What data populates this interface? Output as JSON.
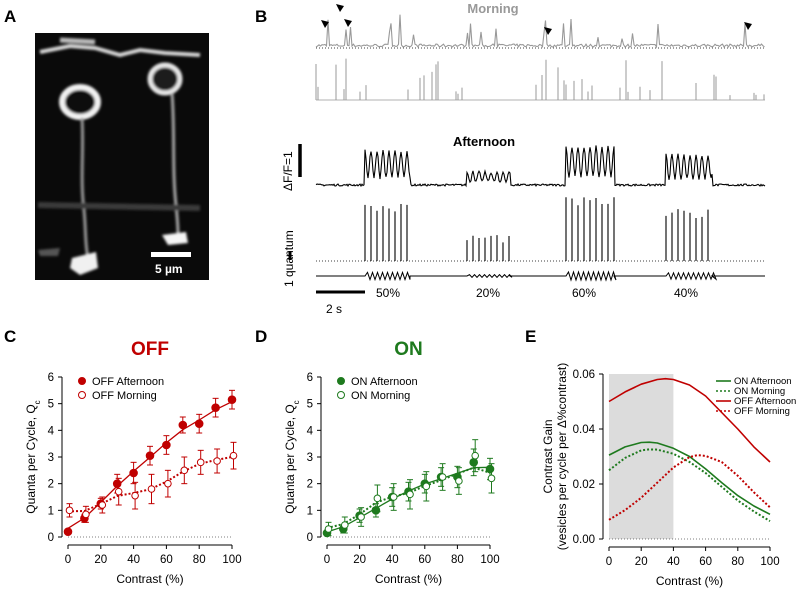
{
  "panel_labels": [
    "A",
    "B",
    "C",
    "D",
    "E"
  ],
  "panel_a": {
    "scale_bar_label": "5 µm"
  },
  "panel_b": {
    "morning_label": "Morning",
    "afternoon_label": "Afternoon",
    "dff_scale_label": "ΔF/F=1",
    "quantum_scale_label": "1 quantum",
    "time_scale_label": "2 s",
    "contrast_labels": [
      "50%",
      "20%",
      "60%",
      "40%"
    ],
    "colors": {
      "morning": "#999999",
      "afternoon": "#000000"
    }
  },
  "chart_data": [
    {
      "type": "scatter",
      "title": "OFF",
      "xlabel": "Contrast (%)",
      "ylabel": "Quanta per Cycle, Q",
      "ylabel_sub": "c",
      "xlim": [
        0,
        100
      ],
      "ylim": [
        0,
        6
      ],
      "xticks": [
        "0",
        "20",
        "40",
        "60",
        "80",
        "100"
      ],
      "yticks": [
        "0",
        "1",
        "2",
        "3",
        "4",
        "5",
        "6"
      ],
      "color": "#c00000",
      "series": [
        {
          "name": "OFF Afternoon",
          "marker": "filled",
          "line": "solid",
          "x": [
            0,
            10,
            20,
            30,
            40,
            50,
            60,
            70,
            80,
            90,
            100
          ],
          "y": [
            0.2,
            0.7,
            1.25,
            2.0,
            2.4,
            3.05,
            3.45,
            4.2,
            4.25,
            4.85,
            5.15
          ],
          "err": [
            0.05,
            0.15,
            0.2,
            0.35,
            0.4,
            0.35,
            0.35,
            0.3,
            0.35,
            0.35,
            0.35
          ]
        },
        {
          "name": "OFF Morning",
          "marker": "open",
          "line": "dotted",
          "x": [
            0,
            10,
            20,
            30,
            40,
            50,
            60,
            70,
            80,
            90,
            100
          ],
          "y": [
            1.0,
            0.85,
            1.2,
            1.7,
            1.55,
            1.8,
            2.0,
            2.5,
            2.8,
            2.85,
            3.05
          ],
          "err": [
            0.25,
            0.3,
            0.3,
            0.5,
            0.5,
            0.55,
            0.5,
            0.5,
            0.45,
            0.45,
            0.5
          ]
        }
      ],
      "legend_position": "top-left"
    },
    {
      "type": "scatter",
      "title": "ON",
      "xlabel": "Contrast (%)",
      "ylabel": "Quanta per Cycle, Q",
      "ylabel_sub": "c",
      "xlim": [
        0,
        100
      ],
      "ylim": [
        0,
        6
      ],
      "xticks": [
        "0",
        "20",
        "40",
        "60",
        "80",
        "100"
      ],
      "yticks": [
        "0",
        "1",
        "2",
        "3",
        "4",
        "5",
        "6"
      ],
      "color": "#1e7a1e",
      "series": [
        {
          "name": "ON Afternoon",
          "marker": "filled",
          "line": "solid",
          "x": [
            0,
            10,
            20,
            30,
            40,
            50,
            60,
            70,
            80,
            90,
            100
          ],
          "y": [
            0.15,
            0.3,
            0.8,
            1.0,
            1.5,
            1.7,
            2.0,
            2.25,
            2.25,
            2.8,
            2.55
          ],
          "err": [
            0.1,
            0.15,
            0.25,
            0.25,
            0.35,
            0.35,
            0.35,
            0.35,
            0.4,
            0.5,
            0.4
          ]
        },
        {
          "name": "ON Morning",
          "marker": "open",
          "line": "dotted",
          "x": [
            0,
            10,
            20,
            30,
            40,
            50,
            60,
            70,
            80,
            90,
            100
          ],
          "y": [
            0.3,
            0.45,
            0.75,
            1.45,
            1.5,
            1.6,
            1.9,
            2.25,
            2.1,
            3.05,
            2.2
          ],
          "err": [
            0.25,
            0.3,
            0.35,
            0.5,
            0.5,
            0.55,
            0.55,
            0.5,
            0.5,
            0.6,
            0.55
          ]
        }
      ],
      "legend_position": "top-left"
    },
    {
      "type": "line",
      "title": "",
      "xlabel": "Contrast (%)",
      "ylabel": "Contrast Gain",
      "ylabel2": "(vesicles per cycle per Δ%contrast)",
      "xlim": [
        0,
        100
      ],
      "ylim": [
        0,
        0.06
      ],
      "xticks": [
        "0",
        "20",
        "40",
        "60",
        "80",
        "100"
      ],
      "yticks": [
        "0.00",
        "0.02",
        "0.04",
        "0.06"
      ],
      "shaded_region": [
        0,
        40
      ],
      "series": [
        {
          "name": "ON Afternoon",
          "color": "#1e7a1e",
          "dash": "solid",
          "x": [
            0,
            10,
            20,
            25,
            30,
            40,
            50,
            60,
            70,
            80,
            90,
            100
          ],
          "y": [
            0.0305,
            0.0335,
            0.0351,
            0.0352,
            0.0349,
            0.033,
            0.03,
            0.0255,
            0.0205,
            0.0158,
            0.012,
            0.009
          ]
        },
        {
          "name": "ON Morning",
          "color": "#1e7a1e",
          "dash": "dotted",
          "x": [
            0,
            10,
            20,
            25,
            30,
            40,
            50,
            60,
            70,
            80,
            90,
            100
          ],
          "y": [
            0.025,
            0.0295,
            0.0322,
            0.0326,
            0.0325,
            0.031,
            0.028,
            0.024,
            0.019,
            0.014,
            0.01,
            0.0065
          ]
        },
        {
          "name": "OFF Afternoon",
          "color": "#c00000",
          "dash": "solid",
          "x": [
            0,
            10,
            20,
            30,
            35,
            40,
            50,
            60,
            70,
            80,
            90,
            100
          ],
          "y": [
            0.05,
            0.0535,
            0.0563,
            0.058,
            0.0583,
            0.058,
            0.056,
            0.052,
            0.046,
            0.04,
            0.0335,
            0.028
          ]
        },
        {
          "name": "OFF Morning",
          "color": "#c00000",
          "dash": "dotted",
          "x": [
            0,
            10,
            20,
            30,
            40,
            50,
            55,
            60,
            70,
            80,
            90,
            100
          ],
          "y": [
            0.007,
            0.0105,
            0.015,
            0.0205,
            0.026,
            0.0298,
            0.0305,
            0.0302,
            0.028,
            0.023,
            0.017,
            0.0115
          ]
        }
      ],
      "legend_position": "top-right"
    }
  ]
}
